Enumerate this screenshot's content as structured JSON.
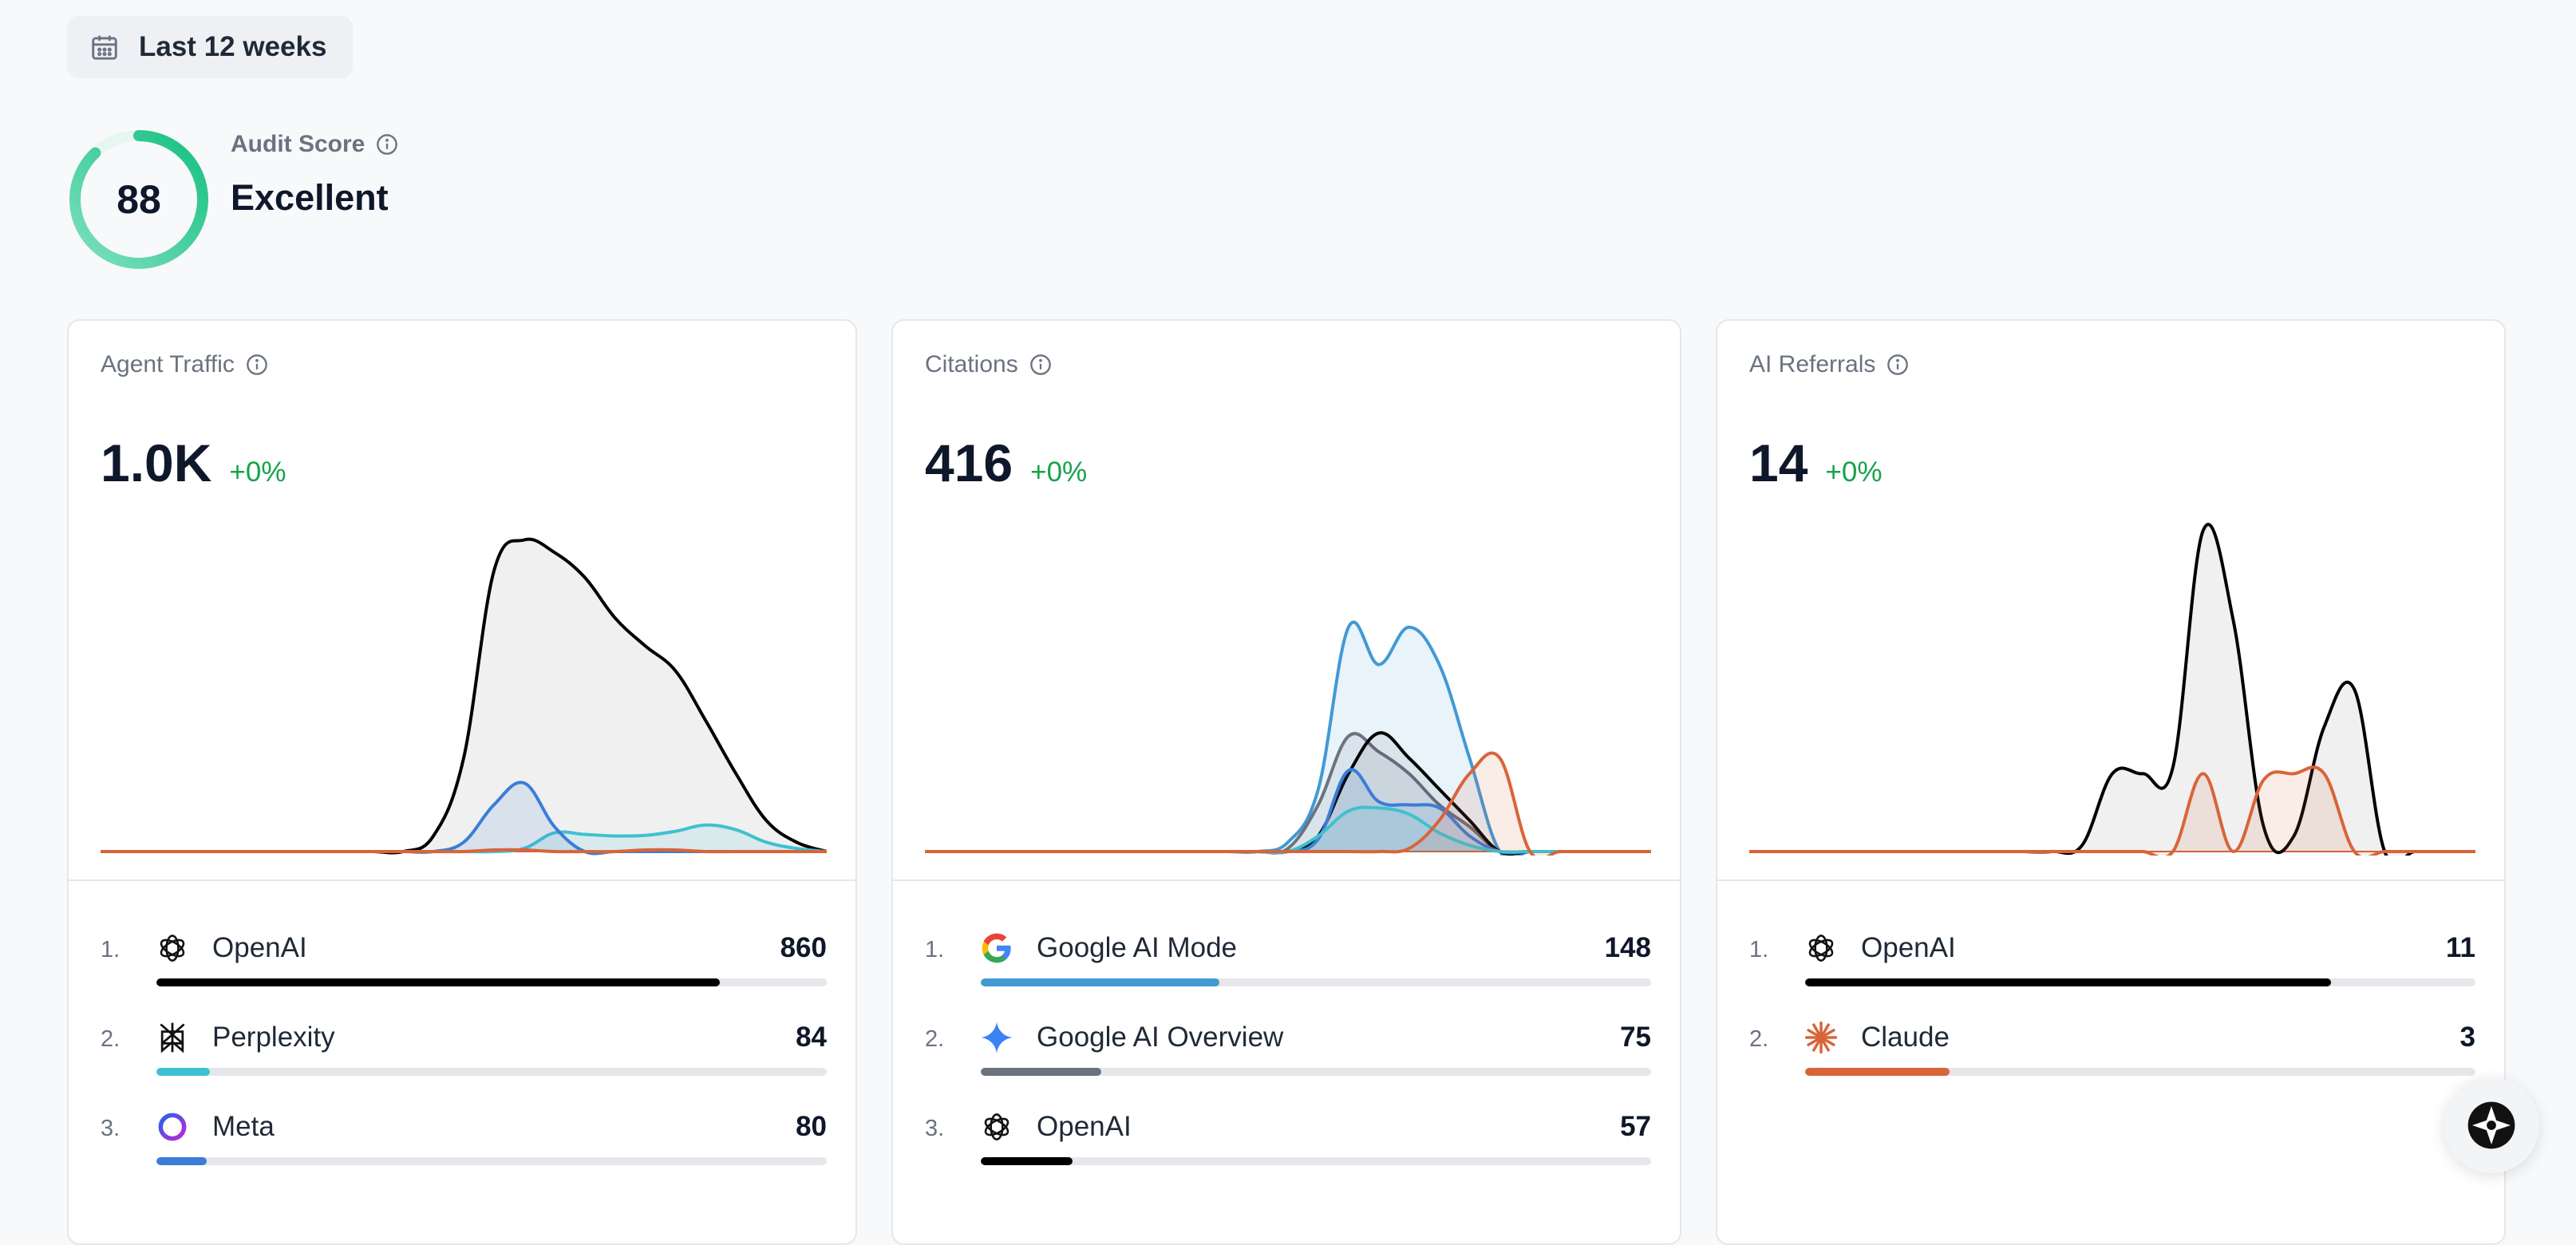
{
  "date_filter": {
    "label": "Last 12 weeks",
    "icon": "calendar-icon"
  },
  "audit": {
    "label": "Audit Score",
    "score": "88",
    "score_value": 88,
    "rating": "Excellent",
    "accent": "#22c58b"
  },
  "cards": [
    {
      "title": "Agent Traffic",
      "value": "1.0K",
      "delta": "+0%",
      "rows": [
        {
          "rank": "1.",
          "name": "OpenAI",
          "count": "860",
          "share": 0.84,
          "color": "#000000",
          "icon": "openai-icon"
        },
        {
          "rank": "2.",
          "name": "Perplexity",
          "count": "84",
          "share": 0.08,
          "color": "#3fc1cf",
          "icon": "perplexity-icon"
        },
        {
          "rank": "3.",
          "name": "Meta",
          "count": "80",
          "share": 0.075,
          "color": "#3b7dd8",
          "icon": "meta-icon"
        }
      ]
    },
    {
      "title": "Citations",
      "value": "416",
      "delta": "+0%",
      "rows": [
        {
          "rank": "1.",
          "name": "Google AI Mode",
          "count": "148",
          "share": 0.356,
          "color": "#4299d4",
          "icon": "google-icon"
        },
        {
          "rank": "2.",
          "name": "Google AI Overview",
          "count": "75",
          "share": 0.18,
          "color": "#6b7280",
          "icon": "gemini-sparkle-icon"
        },
        {
          "rank": "3.",
          "name": "OpenAI",
          "count": "57",
          "share": 0.137,
          "color": "#000000",
          "icon": "openai-icon"
        }
      ]
    },
    {
      "title": "AI Referrals",
      "value": "14",
      "delta": "+0%",
      "rows": [
        {
          "rank": "1.",
          "name": "OpenAI",
          "count": "11",
          "share": 0.785,
          "color": "#000000",
          "icon": "openai-icon"
        },
        {
          "rank": "2.",
          "name": "Claude",
          "count": "3",
          "share": 0.215,
          "color": "#d9643a",
          "icon": "claude-icon"
        }
      ]
    }
  ],
  "chart_data": [
    {
      "type": "area",
      "x": [
        0,
        1,
        2,
        3,
        4,
        5,
        6,
        7,
        8,
        9,
        10,
        11,
        12,
        13,
        14,
        15,
        16,
        17,
        18,
        19,
        20,
        21,
        22,
        23,
        24
      ],
      "series": [
        {
          "color": "#000000",
          "values": [
            0,
            0,
            0,
            0,
            0,
            0,
            0,
            0,
            0,
            0,
            0,
            0.5,
            3,
            9,
            10,
            9.6,
            8.8,
            7.5,
            6.6,
            5.8,
            4.2,
            2.5,
            1,
            0.3,
            0
          ]
        },
        {
          "color": "#3fc1cf",
          "values": [
            0,
            0,
            0,
            0,
            0,
            0,
            0,
            0,
            0,
            0,
            0,
            0,
            0,
            0,
            0.1,
            0.6,
            0.55,
            0.5,
            0.52,
            0.65,
            0.85,
            0.7,
            0.3,
            0.1,
            0
          ]
        },
        {
          "color": "#3b7dd8",
          "values": [
            0,
            0,
            0,
            0,
            0,
            0,
            0,
            0,
            0,
            0,
            0,
            0,
            0.3,
            1.5,
            2.2,
            0.8,
            0,
            0,
            0,
            0,
            0,
            0,
            0,
            0,
            0
          ]
        },
        {
          "color": "#d9643a",
          "values": [
            0,
            0,
            0,
            0,
            0,
            0,
            0,
            0,
            0,
            0,
            0,
            0,
            0,
            0.05,
            0.05,
            0,
            0,
            0,
            0.05,
            0.05,
            0,
            0,
            0,
            0,
            0
          ]
        }
      ],
      "ylim": [
        0,
        10.5
      ]
    },
    {
      "type": "area",
      "x": [
        0,
        1,
        2,
        3,
        4,
        5,
        6,
        7,
        8,
        9,
        10,
        11,
        12,
        13,
        14,
        15,
        16,
        17,
        18,
        19,
        20,
        21,
        22,
        23,
        24
      ],
      "series": [
        {
          "color": "#4299d4",
          "values": [
            0,
            0,
            0,
            0,
            0,
            0,
            0,
            0,
            0,
            0,
            0,
            0,
            0.3,
            2,
            7.2,
            6,
            7.2,
            6,
            3,
            0,
            0,
            0,
            0,
            0,
            0
          ]
        },
        {
          "color": "#6b7280",
          "values": [
            0,
            0,
            0,
            0,
            0,
            0,
            0,
            0,
            0,
            0,
            0,
            0,
            0.1,
            1.5,
            3.7,
            3.2,
            2.5,
            1.5,
            0.8,
            0,
            0,
            0,
            0,
            0,
            0
          ]
        },
        {
          "color": "#000000",
          "values": [
            0,
            0,
            0,
            0,
            0,
            0,
            0,
            0,
            0,
            0,
            0,
            0,
            0,
            0.5,
            2.5,
            3.8,
            3,
            2,
            1,
            0,
            0,
            0,
            0,
            0,
            0
          ]
        },
        {
          "color": "#3b7dd8",
          "values": [
            0,
            0,
            0,
            0,
            0,
            0,
            0,
            0,
            0,
            0,
            0,
            0,
            0,
            0.4,
            2.6,
            1.6,
            1.5,
            1.4,
            0.5,
            0,
            0,
            0,
            0,
            0,
            0
          ]
        },
        {
          "color": "#3fc1cf",
          "values": [
            0,
            0,
            0,
            0,
            0,
            0,
            0,
            0,
            0,
            0,
            0,
            0,
            0,
            0.5,
            1.3,
            1.4,
            1.2,
            0.6,
            0.2,
            0,
            0,
            0,
            0,
            0,
            0
          ]
        },
        {
          "color": "#d9643a",
          "values": [
            0,
            0,
            0,
            0,
            0,
            0,
            0,
            0,
            0,
            0,
            0,
            0,
            0,
            0,
            0,
            0,
            0.1,
            1,
            2.5,
            3,
            0,
            0,
            0,
            0,
            0
          ]
        }
      ],
      "ylim": [
        0,
        10.5
      ]
    },
    {
      "type": "area",
      "x": [
        0,
        1,
        2,
        3,
        4,
        5,
        6,
        7,
        8,
        9,
        10,
        11,
        12,
        13,
        14,
        15,
        16,
        17,
        18,
        19,
        20,
        21,
        22,
        23,
        24
      ],
      "series": [
        {
          "color": "#000000",
          "values": [
            0,
            0,
            0,
            0,
            0,
            0,
            0,
            0,
            0,
            0,
            0,
            0.2,
            2.5,
            2.5,
            2.7,
            10.3,
            7.4,
            0.8,
            0.5,
            4,
            5.2,
            0,
            0,
            0,
            0
          ]
        },
        {
          "color": "#d9643a",
          "values": [
            0,
            0,
            0,
            0,
            0,
            0,
            0,
            0,
            0,
            0,
            0,
            0,
            0,
            0,
            0,
            2.5,
            0,
            2.3,
            2.5,
            2.5,
            0,
            0,
            0,
            0,
            0
          ]
        }
      ],
      "ylim": [
        0,
        10.5
      ]
    }
  ]
}
